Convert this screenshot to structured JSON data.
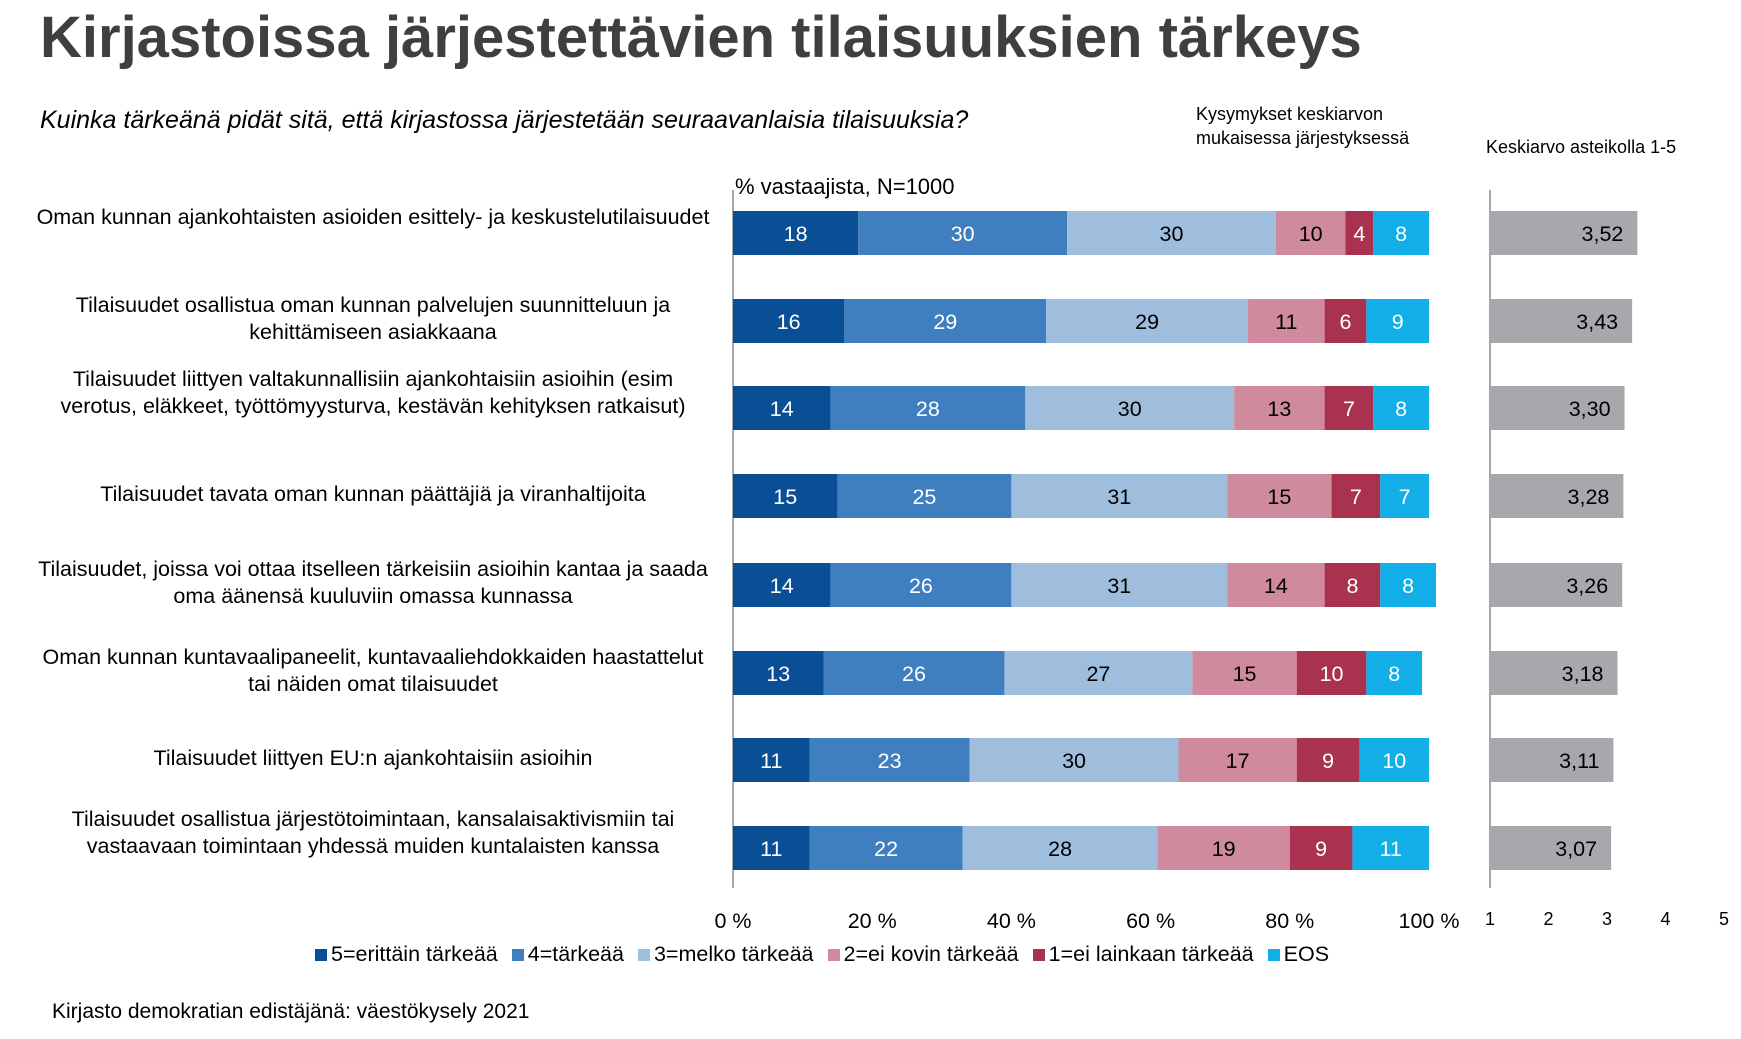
{
  "title": "Kirjastoissa järjestettävien tilaisuuksien tärkeys",
  "subtitle": "Kuinka tärkeänä pidät sitä, että kirjastossa järjestetään seuraavanlaisia tilaisuuksia?",
  "order_note": "Kysymykset keskiarvon mukaisessa järjestyksessä",
  "mean_axis_title": "Keskiarvo asteikolla 1-5",
  "pct_axis_title": "% vastaajista, N=1000",
  "source": "Kirjasto demokratian edistäjänä: väestökysely 2021",
  "colors": {
    "s5": "#0a4e95",
    "s4": "#3f7fbf",
    "s3": "#9fbedd",
    "s2": "#cf8a9e",
    "s1": "#a8324f",
    "eos": "#12aee8",
    "mean_bar": "#a6a8ab",
    "axis": "#8c8c8c"
  },
  "chart_data": [
    {
      "type": "bar",
      "orientation": "horizontal",
      "stacked": true,
      "xlabel": "% vastaajista, N=1000",
      "xlim": [
        0,
        100
      ],
      "x_ticks": [
        "0 %",
        "20 %",
        "40 %",
        "60 %",
        "80 %",
        "100 %"
      ],
      "categories": [
        "Oman kunnan ajankohtaisten asioiden esittely- ja keskustelutilaisuudet",
        "Tilaisuudet osallistua oman kunnan palvelujen suunnitteluun ja kehittämiseen asiakkaana",
        "Tilaisuudet liittyen valtakunnallisiin ajankohtaisiin asioihin (esim verotus, eläkkeet, työttömyysturva, kestävän kehityksen ratkaisut)",
        "Tilaisuudet tavata oman kunnan päättäjiä ja viranhaltijoita",
        "Tilaisuudet, joissa voi ottaa itselleen tärkeisiin asioihin kantaa ja saada oma äänensä kuuluviin omassa kunnassa",
        "Oman kunnan kuntavaalipaneelit, kuntavaaliehdokkaiden haastattelut tai näiden omat tilaisuudet",
        "Tilaisuudet liittyen EU:n ajankohtaisiin asioihin",
        "Tilaisuudet osallistua järjestötoimintaan, kansalaisaktivismiin tai vastaavaan toimintaan yhdessä muiden kuntalaisten kanssa"
      ],
      "series": [
        {
          "name": "5=erittäin tärkeää",
          "color_key": "s5",
          "values": [
            18,
            16,
            14,
            15,
            14,
            13,
            11,
            11
          ]
        },
        {
          "name": "4=tärkeää",
          "color_key": "s4",
          "values": [
            30,
            29,
            28,
            25,
            26,
            26,
            23,
            22
          ]
        },
        {
          "name": "3=melko tärkeää",
          "color_key": "s3",
          "values": [
            30,
            29,
            30,
            31,
            31,
            27,
            30,
            28
          ]
        },
        {
          "name": "2=ei kovin tärkeää",
          "color_key": "s2",
          "values": [
            10,
            11,
            13,
            15,
            14,
            15,
            17,
            19
          ]
        },
        {
          "name": "1=ei lainkaan tärkeää",
          "color_key": "s1",
          "values": [
            4,
            6,
            7,
            7,
            8,
            10,
            9,
            9
          ]
        },
        {
          "name": "EOS",
          "color_key": "eos",
          "values": [
            8,
            9,
            8,
            7,
            8,
            8,
            10,
            11
          ]
        }
      ],
      "legend_position": "bottom"
    },
    {
      "type": "bar",
      "orientation": "horizontal",
      "title": "Keskiarvo asteikolla 1-5",
      "xlim": [
        1,
        5
      ],
      "x_ticks": [
        "1",
        "2",
        "3",
        "4",
        "5"
      ],
      "values": [
        3.52,
        3.43,
        3.3,
        3.28,
        3.26,
        3.18,
        3.11,
        3.07
      ],
      "value_labels": [
        "3,52",
        "3,43",
        "3,30",
        "3,28",
        "3,26",
        "3,18",
        "3,11",
        "3,07"
      ]
    }
  ]
}
